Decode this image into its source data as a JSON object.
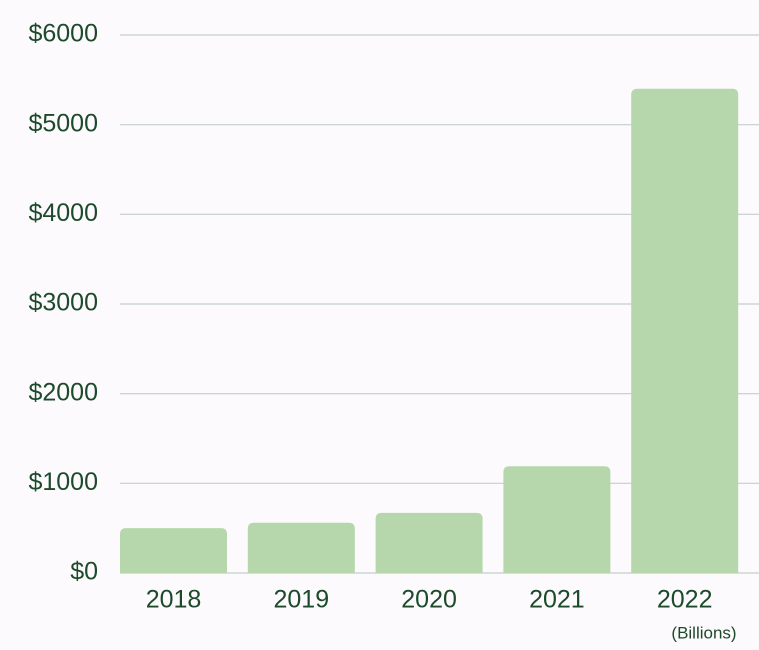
{
  "chart_data": {
    "type": "bar",
    "categories": [
      "2018",
      "2019",
      "2020",
      "2021",
      "2022"
    ],
    "values": [
      500,
      560,
      670,
      1190,
      5400
    ],
    "color": "#b5d7ab",
    "ylim": [
      0,
      6000
    ],
    "yticks": [
      {
        "value": 0,
        "label": "$0"
      },
      {
        "value": 1000,
        "label": "$1000"
      },
      {
        "value": 2000,
        "label": "$2000"
      },
      {
        "value": 3000,
        "label": "$3000"
      },
      {
        "value": 4000,
        "label": "$4000"
      },
      {
        "value": 5000,
        "label": "$5000"
      },
      {
        "value": 6000,
        "label": "$6000"
      }
    ],
    "grid": true,
    "annotation": "(Billions)"
  }
}
